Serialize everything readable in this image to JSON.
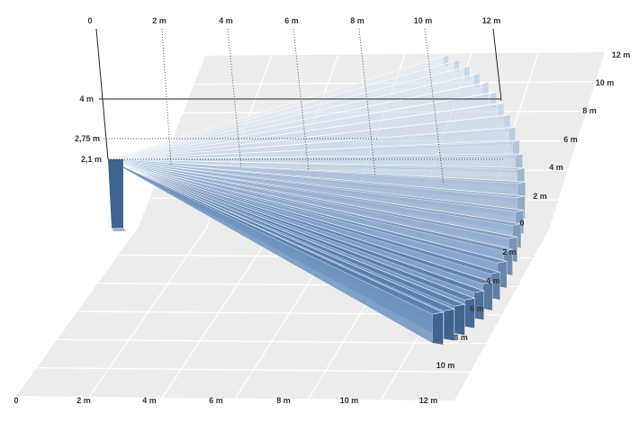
{
  "diagram": {
    "top_axis": {
      "ticks": [
        "0",
        "2 m",
        "4 m",
        "6 m",
        "8 m",
        "10 m",
        "12 m"
      ]
    },
    "height_axis": {
      "ticks": [
        "4 m",
        "2,75 m",
        "2,1 m"
      ]
    },
    "right_axis_back": {
      "ticks": [
        "12 m",
        "10 m",
        "8 m",
        "6 m",
        "4 m",
        "2 m",
        "0"
      ]
    },
    "right_axis_front": {
      "ticks": [
        "2 m",
        "4 m",
        "6 m",
        "8 m",
        "10 m"
      ]
    },
    "bottom_axis": {
      "ticks": [
        "0",
        "2 m",
        "4 m",
        "6 m",
        "8 m",
        "10 m",
        "12 m"
      ]
    },
    "colors": {
      "floor": "#ececec",
      "floor_grid": "#ffffff",
      "beam_light": "#e4edf6",
      "beam_dark": "#5b80ad",
      "beam_side": "#3f648f",
      "sensor": "#4f77a6",
      "guide": "#222222"
    }
  }
}
